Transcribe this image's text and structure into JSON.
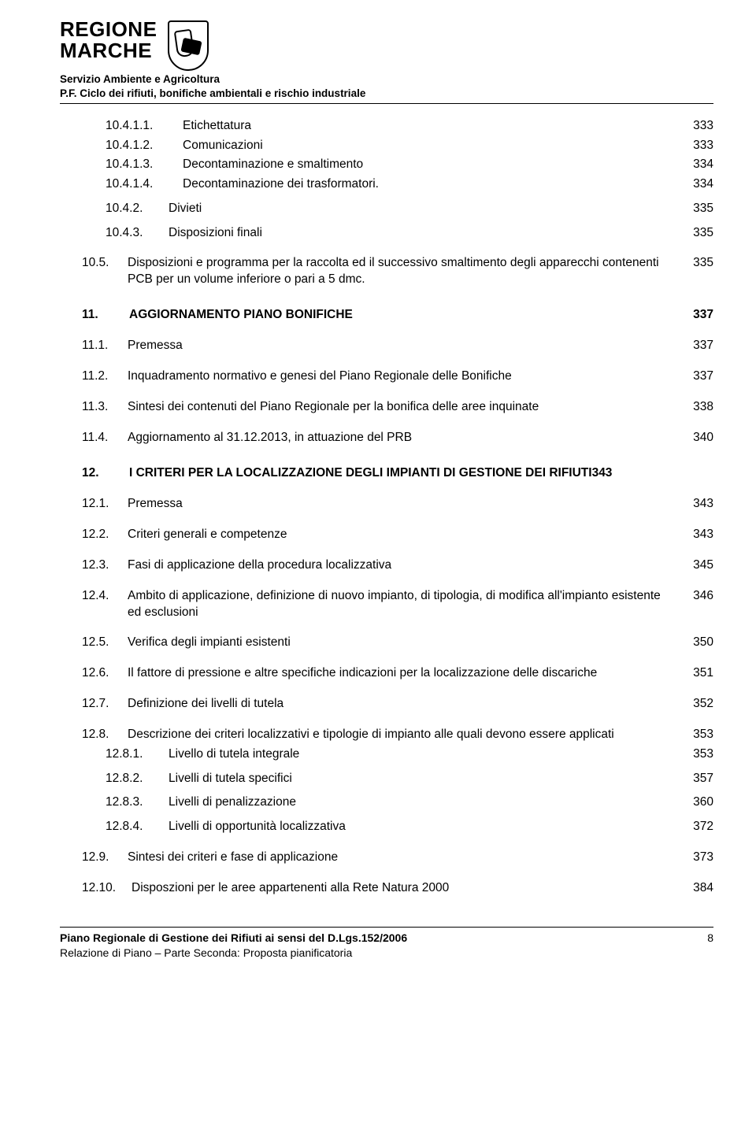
{
  "header": {
    "org_line1": "REGIONE",
    "org_line2": "MARCHE",
    "dept_line1": "Servizio Ambiente e Agricoltura",
    "dept_line2": "P.F. Ciclo dei rifiuti, bonifiche ambientali e rischio industriale"
  },
  "toc": [
    {
      "lvl": 3,
      "num": "10.4.1.1.",
      "txt": "Etichettatura",
      "page": "333"
    },
    {
      "lvl": 3,
      "num": "10.4.1.2.",
      "txt": "Comunicazioni",
      "page": "333"
    },
    {
      "lvl": 3,
      "num": "10.4.1.3.",
      "txt": "Decontaminazione e smaltimento",
      "page": "334"
    },
    {
      "lvl": 3,
      "num": "10.4.1.4.",
      "txt": "Decontaminazione dei trasformatori.",
      "page": "334"
    },
    {
      "lvl": 2,
      "num": "10.4.2.",
      "txt": "Divieti",
      "page": "335",
      "gap": "sm"
    },
    {
      "lvl": 2,
      "num": "10.4.3.",
      "txt": "Disposizioni finali",
      "page": "335",
      "gap": "sm"
    },
    {
      "lvl": 1,
      "num": "10.5.",
      "txt": "Disposizioni e programma per la raccolta ed il successivo smaltimento degli apparecchi contenenti PCB per un volume inferiore o pari a 5 dmc.",
      "page": "335",
      "gap": "md"
    },
    {
      "lvl": 0,
      "num": "11.",
      "txt": "AGGIORNAMENTO PIANO BONIFICHE",
      "page": "337",
      "bold": true,
      "gap": "lg"
    },
    {
      "lvl": 1,
      "num": "11.1.",
      "txt": "Premessa",
      "page": "337",
      "gap": "md"
    },
    {
      "lvl": 1,
      "num": "11.2.",
      "txt": "Inquadramento normativo e genesi del Piano Regionale delle Bonifiche",
      "page": "337",
      "gap": "md"
    },
    {
      "lvl": 1,
      "num": "11.3.",
      "txt": "Sintesi dei contenuti del Piano Regionale per la bonifica delle aree inquinate",
      "page": "338",
      "gap": "md"
    },
    {
      "lvl": 1,
      "num": "11.4.",
      "txt": "Aggiornamento al 31.12.2013, in attuazione del PRB",
      "page": "340",
      "gap": "md"
    },
    {
      "lvl": 0,
      "num": "12.",
      "txt": "I CRITERI PER LA LOCALIZZAZIONE DEGLI IMPIANTI DI GESTIONE DEI RIFIUTI",
      "page": "343",
      "bold": true,
      "gap": "lg",
      "inline": true
    },
    {
      "lvl": 1,
      "num": "12.1.",
      "txt": "Premessa",
      "page": "343",
      "gap": "md"
    },
    {
      "lvl": 1,
      "num": "12.2.",
      "txt": "Criteri generali e competenze",
      "page": "343",
      "gap": "md"
    },
    {
      "lvl": 1,
      "num": "12.3.",
      "txt": "Fasi di applicazione della procedura localizzativa",
      "page": "345",
      "gap": "md"
    },
    {
      "lvl": 1,
      "num": "12.4.",
      "txt": "Ambito di applicazione, definizione di nuovo impianto, di tipologia, di modifica all'impianto esistente ed esclusioni",
      "page": "346",
      "gap": "md"
    },
    {
      "lvl": 1,
      "num": "12.5.",
      "txt": "Verifica degli impianti esistenti",
      "page": "350",
      "gap": "md"
    },
    {
      "lvl": 1,
      "num": "12.6.",
      "txt": "Il fattore di pressione e altre specifiche indicazioni per la localizzazione delle discariche",
      "page": "351",
      "gap": "md"
    },
    {
      "lvl": 1,
      "num": "12.7.",
      "txt": "Definizione dei livelli di tutela",
      "page": "352",
      "gap": "md"
    },
    {
      "lvl": 1,
      "num": "12.8.",
      "txt": "Descrizione dei criteri localizzativi e tipologie di impianto alle quali devono essere applicati",
      "page": "353",
      "gap": "md"
    },
    {
      "lvl": 2,
      "num": "12.8.1.",
      "txt": "Livello di tutela integrale",
      "page": "353"
    },
    {
      "lvl": 2,
      "num": "12.8.2.",
      "txt": "Livelli di tutela specifici",
      "page": "357",
      "gap": "sm"
    },
    {
      "lvl": 2,
      "num": "12.8.3.",
      "txt": "Livelli di penalizzazione",
      "page": "360",
      "gap": "sm"
    },
    {
      "lvl": 2,
      "num": "12.8.4.",
      "txt": "Livelli di opportunità localizzativa",
      "page": "372",
      "gap": "sm"
    },
    {
      "lvl": 1,
      "num": "12.9.",
      "txt": "Sintesi dei criteri e fase di applicazione",
      "page": "373",
      "gap": "md"
    },
    {
      "lvl": 1,
      "num": "12.10.",
      "txt": "Disposzioni per le aree appartenenti alla Rete Natura 2000",
      "page": "384",
      "gap": "md",
      "numw": "63"
    }
  ],
  "footer": {
    "l1": "Piano Regionale di Gestione dei Rifiuti ai sensi del D.Lgs.152/2006",
    "l2": "Relazione di Piano – Parte Seconda: Proposta pianificatoria",
    "page": "8"
  }
}
